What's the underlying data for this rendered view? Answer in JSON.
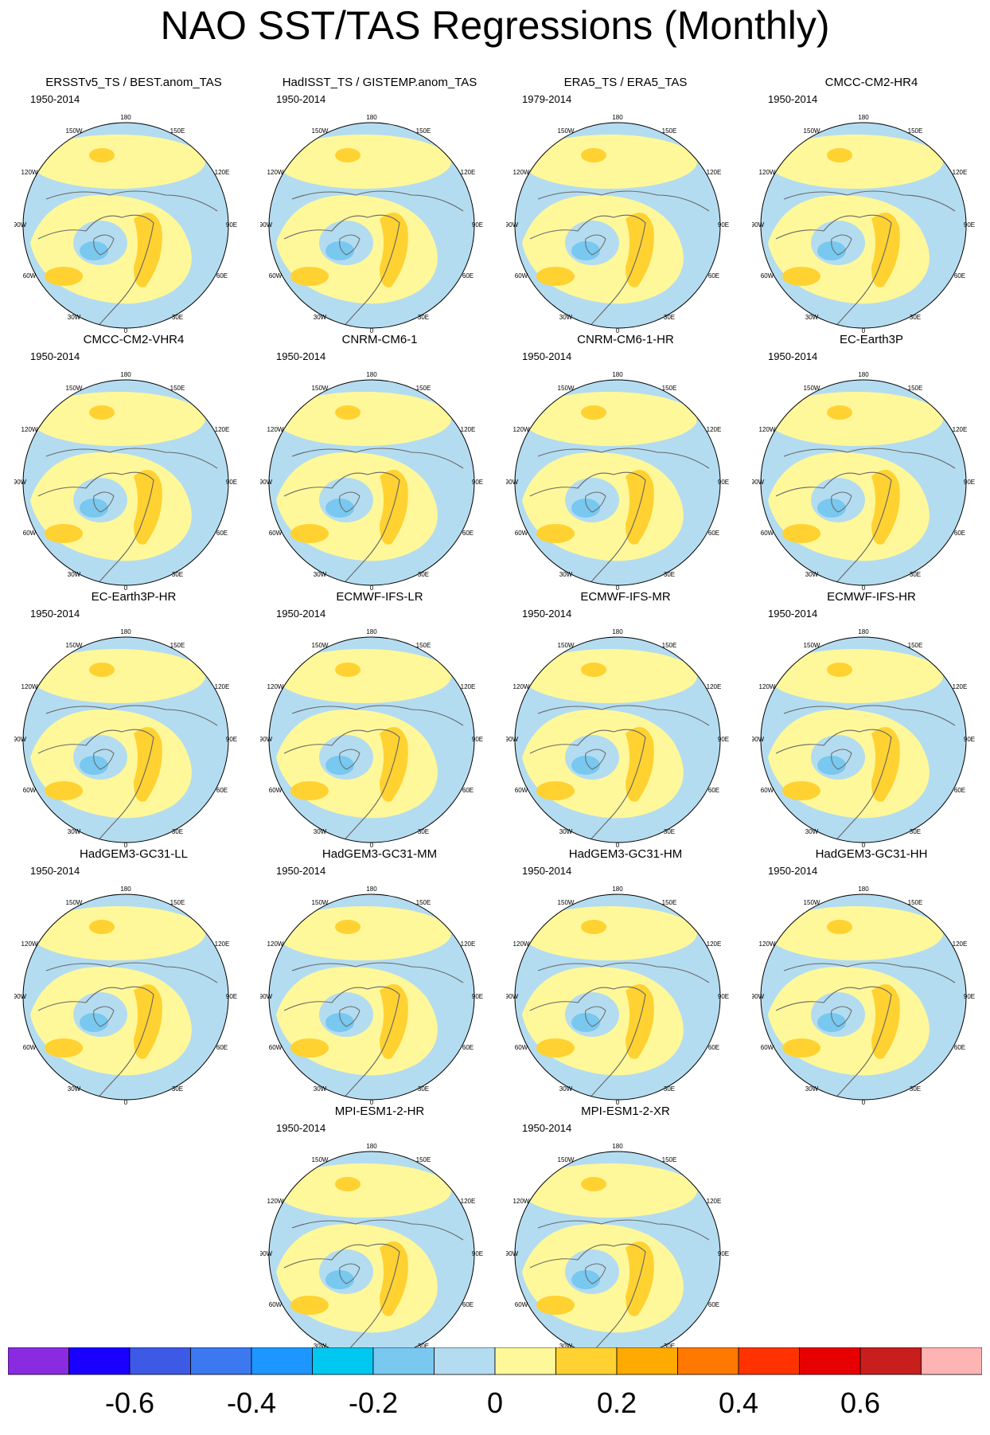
{
  "title": "NAO SST/TAS Regressions (Monthly)",
  "panels": [
    {
      "title": "ERSSTv5_TS / BEST.anom_TAS",
      "period": "1950-2014"
    },
    {
      "title": "HadISST_TS / GISTEMP.anom_TAS",
      "period": "1950-2014"
    },
    {
      "title": "ERA5_TS / ERA5_TAS",
      "period": "1979-2014"
    },
    {
      "title": "CMCC-CM2-HR4",
      "period": "1950-2014"
    },
    {
      "title": "CMCC-CM2-VHR4",
      "period": "1950-2014"
    },
    {
      "title": "CNRM-CM6-1",
      "period": "1950-2014"
    },
    {
      "title": "CNRM-CM6-1-HR",
      "period": "1950-2014"
    },
    {
      "title": "EC-Earth3P",
      "period": "1950-2014"
    },
    {
      "title": "EC-Earth3P-HR",
      "period": "1950-2014"
    },
    {
      "title": "ECMWF-IFS-LR",
      "period": "1950-2014"
    },
    {
      "title": "ECMWF-IFS-MR",
      "period": "1950-2014"
    },
    {
      "title": "ECMWF-IFS-HR",
      "period": "1950-2014"
    },
    {
      "title": "HadGEM3-GC31-LL",
      "period": "1950-2014"
    },
    {
      "title": "HadGEM3-GC31-MM",
      "period": "1950-2014"
    },
    {
      "title": "HadGEM3-GC31-HM",
      "period": "1950-2014"
    },
    {
      "title": "HadGEM3-GC31-HH",
      "period": "1950-2014"
    },
    {
      "title": "MPI-ESM1-2-HR",
      "period": "1950-2014"
    },
    {
      "title": "MPI-ESM1-2-XR",
      "period": "1950-2014"
    }
  ],
  "longitude_labels": {
    "top": "180",
    "top_left": "150W",
    "top_right": "150E",
    "upper_left": "120W",
    "upper_right": "120E",
    "left": "90W",
    "right": "90E",
    "lower_left": "60W",
    "lower_right": "60E",
    "bottom_left": "30W",
    "bottom_right": "30E",
    "bottom": "0"
  },
  "colorbar": {
    "colors": [
      "#8a2be2",
      "#1a00ff",
      "#3c5ae6",
      "#3c78f0",
      "#1e96ff",
      "#00c8f0",
      "#78c8f0",
      "#b4dcf0",
      "#fff89a",
      "#ffd232",
      "#ffaa00",
      "#ff7800",
      "#ff3200",
      "#e60000",
      "#c81e1e",
      "#ffb4b4"
    ],
    "labels": [
      "-0.6",
      "-0.4",
      "-0.2",
      "0",
      "0.2",
      "0.4",
      "0.6"
    ]
  }
}
